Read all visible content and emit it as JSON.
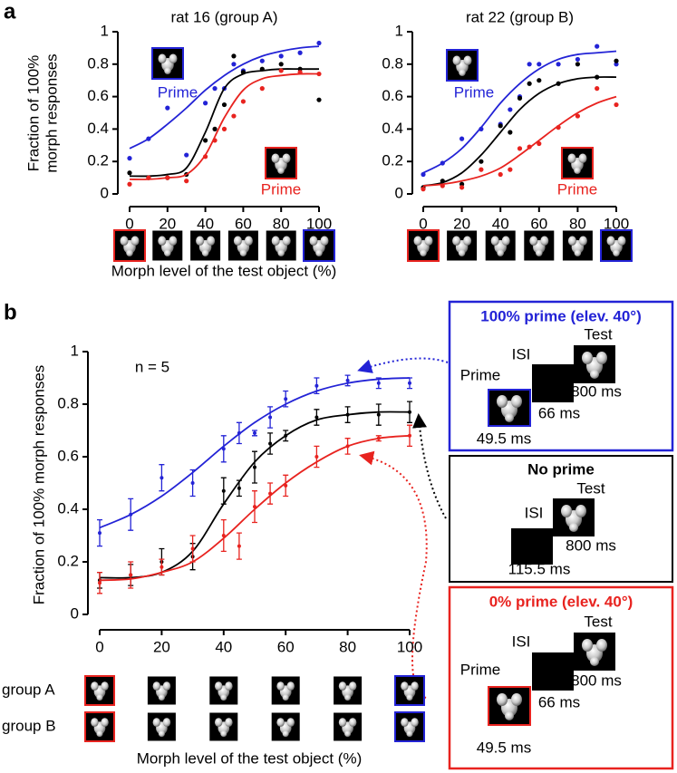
{
  "figure": {
    "panel_a": {
      "label": "a",
      "y_label": [
        "Fraction of 100%",
        "morph responses"
      ],
      "x_label": "Morph level of the test object (%)"
    },
    "panel_b": {
      "label": "b",
      "y_label": "Fraction of 100% morph responses",
      "x_label": "Morph level of the test object (%)",
      "rows": [
        "group A",
        "group B"
      ]
    },
    "schematics": [
      {
        "title": "100% prime (elev. 40°)",
        "test": "Test",
        "isi": "ISI",
        "prime": "Prime",
        "test_time": "800 ms",
        "isi_time": "66 ms",
        "prime_time": "49.5 ms"
      },
      {
        "title": "No prime",
        "test": "Test",
        "isi": "ISI",
        "test_time": "800 ms",
        "isi_time": "115.5 ms"
      },
      {
        "title": "0% prime (elev. 40°)",
        "test": "Test",
        "isi": "ISI",
        "prime": "Prime",
        "test_time": "800 ms",
        "isi_time": "66 ms",
        "prime_time": "49.5 ms"
      }
    ]
  },
  "chart_data": [
    {
      "type": "scatter",
      "title": "rat 16 (group A)",
      "xlim": [
        0,
        100
      ],
      "ylim": [
        0,
        1
      ],
      "xticks": [
        0,
        20,
        40,
        60,
        80,
        100
      ],
      "yticks": [
        0,
        0.2,
        0.4,
        0.6,
        0.8,
        1
      ],
      "x": [
        0,
        10,
        20,
        30,
        40,
        45,
        50,
        55,
        60,
        70,
        80,
        90,
        100
      ],
      "fit_x": [
        0,
        10,
        20,
        30,
        40,
        50,
        60,
        70,
        80,
        90,
        100
      ],
      "annotations": [
        {
          "text": "Prime",
          "color": "#2323d6"
        },
        {
          "text": "Prime",
          "color": "#e8231f"
        }
      ],
      "series": [
        {
          "color": "#2323d6",
          "values": [
            0.22,
            0.34,
            0.53,
            0.24,
            0.56,
            0.65,
            0.65,
            0.8,
            0.76,
            0.82,
            0.85,
            0.87,
            0.93
          ],
          "fit": [
            0.28,
            0.34,
            0.43,
            0.53,
            0.64,
            0.73,
            0.8,
            0.85,
            0.88,
            0.9,
            0.91
          ]
        },
        {
          "color": "#000000",
          "values": [
            0.13,
            0.1,
            0.1,
            0.12,
            0.33,
            0.4,
            0.55,
            0.85,
            0.75,
            0.77,
            0.8,
            0.77,
            0.58
          ],
          "fit": [
            0.11,
            0.11,
            0.12,
            0.16,
            0.38,
            0.65,
            0.74,
            0.76,
            0.77,
            0.77,
            0.77
          ]
        },
        {
          "color": "#e8231f",
          "values": [
            0.06,
            0.1,
            0.1,
            0.08,
            0.23,
            0.33,
            0.4,
            0.48,
            0.57,
            0.65,
            0.76,
            0.75,
            0.74
          ],
          "fit": [
            0.09,
            0.09,
            0.1,
            0.12,
            0.24,
            0.47,
            0.64,
            0.71,
            0.73,
            0.74,
            0.74
          ]
        }
      ]
    },
    {
      "type": "scatter",
      "title": "rat 22 (group B)",
      "xlim": [
        0,
        100
      ],
      "ylim": [
        0,
        1
      ],
      "xticks": [
        0,
        20,
        40,
        60,
        80,
        100
      ],
      "yticks": [
        0,
        0.2,
        0.4,
        0.6,
        0.8,
        1
      ],
      "x": [
        0,
        10,
        20,
        30,
        40,
        45,
        50,
        55,
        60,
        70,
        80,
        90,
        100
      ],
      "fit_x": [
        0,
        10,
        20,
        30,
        40,
        50,
        60,
        70,
        80,
        90,
        100
      ],
      "annotations": [
        {
          "text": "Prime",
          "color": "#2323d6"
        },
        {
          "text": "Prime",
          "color": "#e8231f"
        }
      ],
      "series": [
        {
          "color": "#2323d6",
          "values": [
            0.12,
            0.19,
            0.34,
            0.4,
            0.43,
            0.52,
            0.6,
            0.8,
            0.8,
            0.8,
            0.83,
            0.91,
            0.8
          ],
          "fit": [
            0.13,
            0.19,
            0.28,
            0.41,
            0.56,
            0.68,
            0.77,
            0.83,
            0.86,
            0.87,
            0.88
          ]
        },
        {
          "color": "#000000",
          "values": [
            0.04,
            0.08,
            0.06,
            0.2,
            0.42,
            0.38,
            0.59,
            0.68,
            0.7,
            0.68,
            0.8,
            0.72,
            0.82
          ],
          "fit": [
            0.05,
            0.07,
            0.13,
            0.24,
            0.38,
            0.52,
            0.62,
            0.68,
            0.71,
            0.72,
            0.72
          ]
        },
        {
          "color": "#e8231f",
          "values": [
            0.03,
            0.05,
            0.04,
            0.15,
            0.12,
            0.15,
            0.28,
            0.29,
            0.31,
            0.41,
            0.48,
            0.65,
            0.55
          ],
          "fit": [
            0.05,
            0.06,
            0.08,
            0.11,
            0.16,
            0.24,
            0.33,
            0.42,
            0.5,
            0.56,
            0.6
          ]
        }
      ]
    },
    {
      "type": "scatter",
      "xlim": [
        0,
        100
      ],
      "ylim": [
        0,
        1
      ],
      "xticks": [
        0,
        20,
        40,
        60,
        80,
        100
      ],
      "yticks": [
        0,
        0.2,
        0.4,
        0.6,
        0.8,
        1
      ],
      "x": [
        0,
        10,
        20,
        30,
        40,
        45,
        50,
        55,
        60,
        70,
        80,
        90,
        100
      ],
      "fit_x": [
        0,
        10,
        20,
        30,
        40,
        50,
        60,
        70,
        80,
        90,
        100
      ],
      "annotations": [
        {
          "text": "n = 5",
          "color": "#000000"
        }
      ],
      "series": [
        {
          "color": "#2323d6",
          "values": [
            0.31,
            0.38,
            0.52,
            0.5,
            0.63,
            0.69,
            0.69,
            0.75,
            0.82,
            0.87,
            0.89,
            0.88,
            0.88
          ],
          "errors": [
            0.05,
            0.06,
            0.05,
            0.05,
            0.05,
            0.04,
            0.01,
            0.04,
            0.03,
            0.03,
            0.02,
            0.02,
            0.02
          ],
          "fit": [
            0.33,
            0.38,
            0.45,
            0.54,
            0.64,
            0.73,
            0.8,
            0.85,
            0.88,
            0.895,
            0.9
          ]
        },
        {
          "color": "#000000",
          "values": [
            0.13,
            0.15,
            0.2,
            0.22,
            0.47,
            0.48,
            0.56,
            0.65,
            0.68,
            0.75,
            0.76,
            0.76,
            0.77
          ],
          "errors": [
            0.03,
            0.04,
            0.05,
            0.05,
            0.05,
            0.03,
            0.06,
            0.04,
            0.02,
            0.03,
            0.03,
            0.04,
            0.04
          ],
          "fit": [
            0.14,
            0.14,
            0.16,
            0.24,
            0.42,
            0.58,
            0.68,
            0.74,
            0.76,
            0.77,
            0.77
          ]
        },
        {
          "color": "#e8231f",
          "values": [
            0.12,
            0.15,
            0.18,
            0.25,
            0.3,
            0.26,
            0.41,
            0.46,
            0.49,
            0.6,
            0.64,
            0.67,
            0.68
          ],
          "errors": [
            0.04,
            0.05,
            0.03,
            0.05,
            0.06,
            0.05,
            0.06,
            0.04,
            0.04,
            0.04,
            0.03,
            0.01,
            0.04
          ],
          "fit": [
            0.13,
            0.135,
            0.16,
            0.2,
            0.29,
            0.4,
            0.5,
            0.58,
            0.64,
            0.67,
            0.68
          ]
        }
      ]
    }
  ]
}
